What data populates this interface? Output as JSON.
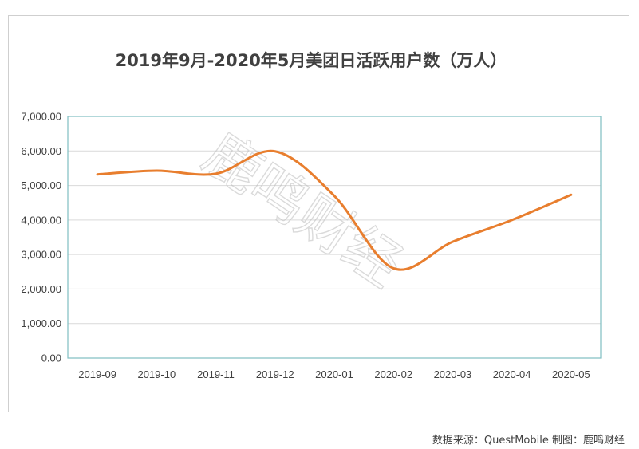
{
  "watermark": "鹿鸣财经",
  "source_note": "数据来源：QuestMobile 制图：鹿鸣财经",
  "colors": {
    "line": "#E87E2E",
    "plot_border": "#7FBFC2",
    "grid": "#d9d9d9",
    "text": "#404040"
  },
  "chart_data": {
    "type": "line",
    "title": "2019年9月-2020年5月美团日活跃用户数（万人）",
    "xlabel": "",
    "ylabel": "",
    "categories": [
      "2019-09",
      "2019-10",
      "2019-11",
      "2019-12",
      "2020-01",
      "2020-02",
      "2020-03",
      "2020-04",
      "2020-05"
    ],
    "series": [
      {
        "values": [
          5320,
          5430,
          5340,
          5990,
          4700,
          2600,
          3370,
          4000,
          4730
        ]
      }
    ],
    "ylim": [
      0,
      7000
    ],
    "yticks": [
      0,
      1000,
      2000,
      3000,
      4000,
      5000,
      6000,
      7000
    ],
    "ytick_labels": [
      "0.00",
      "1,000.00",
      "2,000.00",
      "3,000.00",
      "4,000.00",
      "5,000.00",
      "6,000.00",
      "7,000.00"
    ],
    "grid": true,
    "legend": "none",
    "smooth": true
  }
}
